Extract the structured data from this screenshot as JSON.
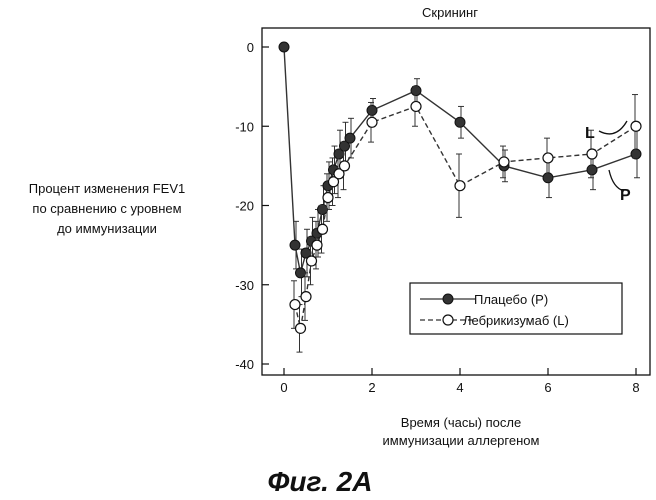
{
  "chart_data": {
    "type": "line",
    "title": "Скрининг",
    "ylabel": [
      "Процент изменения FEV1",
      "по сравнению с уровнем",
      "до иммунизации"
    ],
    "xlabel": [
      "Время (часы) после",
      "иммунизации аллергеном"
    ],
    "xlim": [
      0,
      8
    ],
    "ylim": [
      -40,
      0
    ],
    "xticks": [
      0,
      2,
      4,
      6,
      8
    ],
    "yticks": [
      0,
      -10,
      -20,
      -30,
      -40
    ],
    "grid": false,
    "legend_position": "bottom-right",
    "series": [
      {
        "name": "Плацебо (P)",
        "marker": "filled-circle",
        "line": "solid",
        "color": "#333333",
        "end_label": "P",
        "points": [
          {
            "x": 0,
            "y": 0
          },
          {
            "x": 0.25,
            "y": -25,
            "err": 3
          },
          {
            "x": 0.375,
            "y": -28.5,
            "err": 3
          },
          {
            "x": 0.5,
            "y": -26,
            "err": 3
          },
          {
            "x": 0.625,
            "y": -24.5,
            "err": 3
          },
          {
            "x": 0.75,
            "y": -23.5,
            "err": 3
          },
          {
            "x": 0.875,
            "y": -20.5,
            "err": 3
          },
          {
            "x": 1,
            "y": -17.5,
            "err": 3
          },
          {
            "x": 1.125,
            "y": -15.5,
            "err": 3
          },
          {
            "x": 1.25,
            "y": -13.5,
            "err": 3
          },
          {
            "x": 1.375,
            "y": -12.5,
            "err": 3
          },
          {
            "x": 1.5,
            "y": -11.5,
            "err": 2.5
          },
          {
            "x": 2,
            "y": -8,
            "err": 1.5
          },
          {
            "x": 3,
            "y": -5.5,
            "err": 1.5
          },
          {
            "x": 4,
            "y": -9.5,
            "err": 2
          },
          {
            "x": 5,
            "y": -15,
            "err": 2
          },
          {
            "x": 6,
            "y": -16.5,
            "err": 2.5
          },
          {
            "x": 7,
            "y": -15.5,
            "err": 2.5
          },
          {
            "x": 8,
            "y": -13.5,
            "err": 3
          }
        ]
      },
      {
        "name": "Лебрикизумаб (L)",
        "marker": "open-circle",
        "line": "dashed",
        "color": "#333333",
        "end_label": "L",
        "points": [
          {
            "x": 0.25,
            "y": -32.5,
            "err": 3
          },
          {
            "x": 0.375,
            "y": -35.5,
            "err": 3
          },
          {
            "x": 0.5,
            "y": -31.5,
            "err": 3
          },
          {
            "x": 0.625,
            "y": -27,
            "err": 3
          },
          {
            "x": 0.75,
            "y": -25,
            "err": 3
          },
          {
            "x": 0.875,
            "y": -23,
            "err": 3
          },
          {
            "x": 1,
            "y": -19,
            "err": 3
          },
          {
            "x": 1.125,
            "y": -17,
            "err": 3
          },
          {
            "x": 1.25,
            "y": -16,
            "err": 3
          },
          {
            "x": 1.375,
            "y": -15,
            "err": 3
          },
          {
            "x": 2,
            "y": -9.5,
            "err": 2.5
          },
          {
            "x": 3,
            "y": -7.5,
            "err": 2.5
          },
          {
            "x": 4,
            "y": -17.5,
            "err": 4
          },
          {
            "x": 5,
            "y": -14.5,
            "err": 2
          },
          {
            "x": 6,
            "y": -14,
            "err": 2.5
          },
          {
            "x": 7,
            "y": -13.5,
            "err": 3
          },
          {
            "x": 8,
            "y": -10,
            "err": 4
          }
        ]
      }
    ]
  },
  "figure_caption": "Фиг. 2А"
}
